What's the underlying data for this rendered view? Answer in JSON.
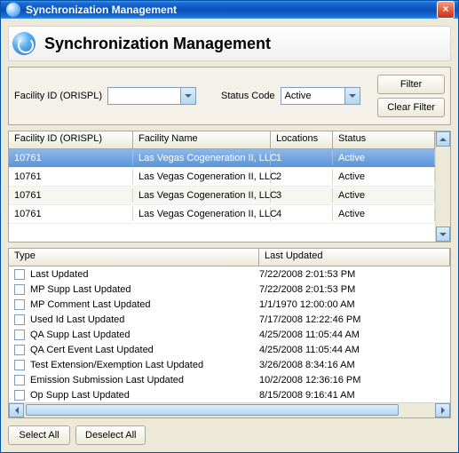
{
  "window": {
    "title": "Synchronization Management"
  },
  "banner": {
    "title": "Synchronization Management"
  },
  "filter": {
    "facility_label": "Facility ID (ORISPL)",
    "facility_value": "",
    "status_label": "Status Code",
    "status_value": "Active",
    "filter_btn": "Filter",
    "clear_btn": "Clear Filter"
  },
  "grid": {
    "columns": {
      "facility_id": "Facility ID (ORISPL)",
      "facility_name": "Facility Name",
      "locations": "Locations",
      "status": "Status"
    },
    "rows": [
      {
        "facility_id": "10761",
        "facility_name": "Las Vegas Cogeneration II, LLC",
        "locations": "1",
        "status": "Active",
        "selected": true
      },
      {
        "facility_id": "10761",
        "facility_name": "Las Vegas Cogeneration II, LLC",
        "locations": "2",
        "status": "Active",
        "selected": false
      },
      {
        "facility_id": "10761",
        "facility_name": "Las Vegas Cogeneration II, LLC",
        "locations": "3",
        "status": "Active",
        "selected": false
      },
      {
        "facility_id": "10761",
        "facility_name": "Las Vegas Cogeneration II, LLC",
        "locations": "4",
        "status": "Active",
        "selected": false
      }
    ]
  },
  "types": {
    "columns": {
      "type": "Type",
      "last_updated": "Last Updated"
    },
    "rows": [
      {
        "type": "Last Updated",
        "last_updated": "7/22/2008 2:01:53 PM"
      },
      {
        "type": "MP Supp Last Updated",
        "last_updated": "7/22/2008 2:01:53 PM"
      },
      {
        "type": "MP Comment Last Updated",
        "last_updated": "1/1/1970 12:00:00 AM"
      },
      {
        "type": "Used Id Last Updated",
        "last_updated": "7/17/2008 12:22:46 PM"
      },
      {
        "type": "QA Supp Last Updated",
        "last_updated": "4/25/2008 11:05:44 AM"
      },
      {
        "type": "QA Cert Event Last Updated",
        "last_updated": "4/25/2008 11:05:44 AM"
      },
      {
        "type": "Test Extension/Exemption Last Updated",
        "last_updated": "3/26/2008 8:34:16 AM"
      },
      {
        "type": "Emission Submission Last Updated",
        "last_updated": "10/2/2008 12:36:16 PM"
      },
      {
        "type": "Op Supp Last Updated",
        "last_updated": "8/15/2008 9:16:41 AM"
      }
    ]
  },
  "buttons": {
    "select_all": "Select All",
    "deselect_all": "Deselect All"
  },
  "colors": {
    "titlebar_gradient": [
      "#3c9cf7",
      "#1c6fd6",
      "#0a4fb8"
    ],
    "close_gradient": [
      "#f79e88",
      "#e45c3f",
      "#c8321a"
    ],
    "frame_bg": "#ece9d8",
    "border": "#aca899",
    "select_border": "#7f9db9",
    "row_selected_gradient": [
      "#8fb8e8",
      "#5a94d8"
    ],
    "row_alt": "#f7f7f2",
    "header_gradient": [
      "#ffffff",
      "#ece9d8"
    ]
  }
}
